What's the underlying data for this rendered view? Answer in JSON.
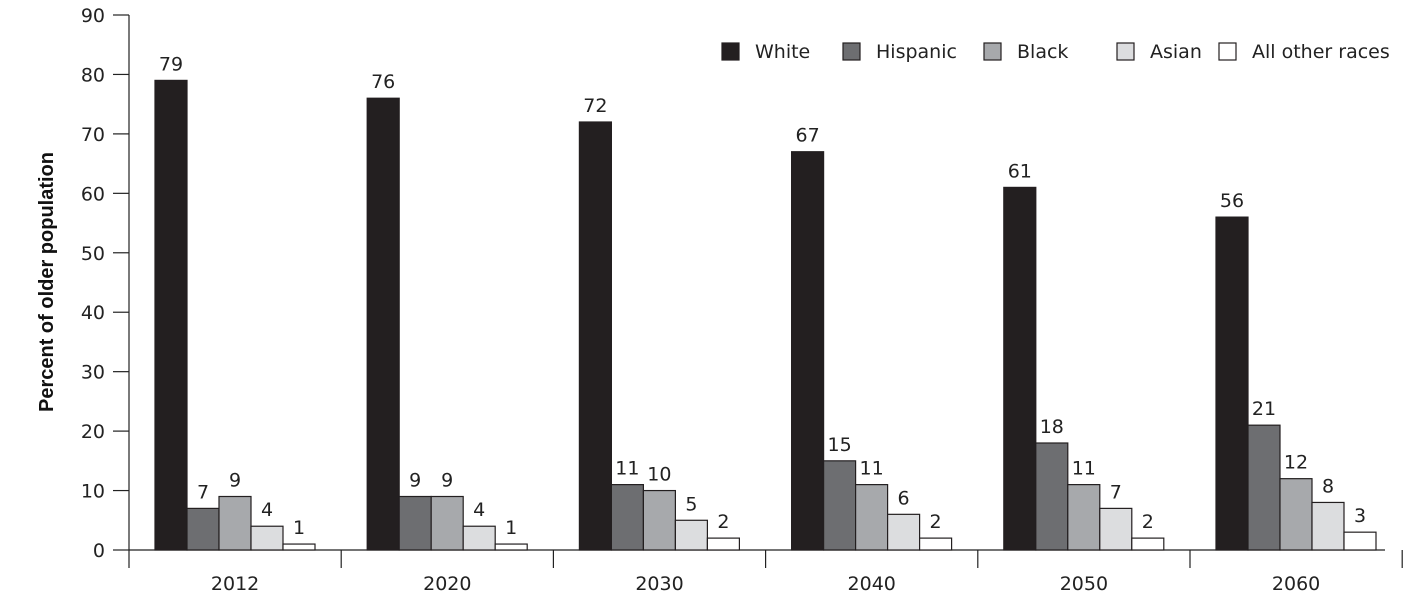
{
  "chart_data": {
    "type": "bar",
    "title": "",
    "xlabel": "",
    "ylabel": "Percent of older population",
    "categories": [
      "2012",
      "2020",
      "2030",
      "2040",
      "2050",
      "2060"
    ],
    "series": [
      {
        "name": "White",
        "color": "#231f20",
        "values": [
          79,
          76,
          72,
          67,
          61,
          56
        ]
      },
      {
        "name": "Hispanic",
        "color": "#6d6e71",
        "values": [
          7,
          9,
          11,
          15,
          18,
          21
        ]
      },
      {
        "name": "Black",
        "color": "#a7a9ac",
        "values": [
          9,
          9,
          10,
          11,
          11,
          12
        ]
      },
      {
        "name": "Asian",
        "color": "#dcdddf",
        "values": [
          4,
          4,
          5,
          6,
          7,
          8
        ]
      },
      {
        "name": "All other races",
        "color": "#ffffff",
        "values": [
          1,
          1,
          2,
          2,
          2,
          3
        ]
      }
    ],
    "ylim": [
      0,
      90
    ],
    "yticks": [
      0,
      10,
      20,
      30,
      40,
      50,
      60,
      70,
      80,
      90
    ],
    "grid": false,
    "legend": "top-right",
    "data_labels": true
  }
}
